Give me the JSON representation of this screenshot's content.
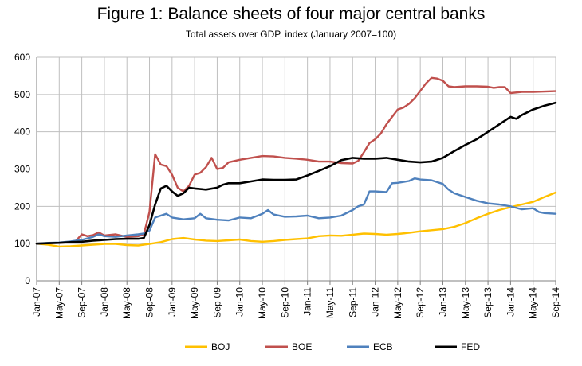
{
  "chart_data": {
    "type": "line",
    "title": "Figure 1: Balance sheets of four major central banks",
    "subtitle": "Total assets over GDP, index (January 2007=100)",
    "xlabel": "",
    "ylabel": "",
    "ylim": [
      0,
      600
    ],
    "yticks": [
      0,
      100,
      200,
      300,
      400,
      500,
      600
    ],
    "grid": true,
    "legend_position": "bottom",
    "x_start": "Jan-07",
    "x_end": "Sep-14",
    "x_tick_labels": [
      "Jan-07",
      "May-07",
      "Sep-07",
      "Jan-08",
      "May-08",
      "Sep-08",
      "Jan-09",
      "May-09",
      "Sep-09",
      "Jan-10",
      "May-10",
      "Sep-10",
      "Jan-11",
      "May-11",
      "Sep-11",
      "Jan-12",
      "May-12",
      "Sep-12",
      "Jan-13",
      "May-13",
      "Sep-13",
      "Jan-14",
      "May-14",
      "Sep-14"
    ],
    "series": [
      {
        "name": "BOJ",
        "color": "#ffc000",
        "points": [
          [
            "Jan-07",
            100
          ],
          [
            "Mar-07",
            97
          ],
          [
            "May-07",
            92
          ],
          [
            "Jul-07",
            93
          ],
          [
            "Sep-07",
            95
          ],
          [
            "Nov-07",
            97
          ],
          [
            "Jan-08",
            99
          ],
          [
            "Mar-08",
            99
          ],
          [
            "May-08",
            96
          ],
          [
            "Jul-08",
            95
          ],
          [
            "Sep-08",
            99
          ],
          [
            "Nov-08",
            104
          ],
          [
            "Jan-09",
            112
          ],
          [
            "Mar-09",
            115
          ],
          [
            "May-09",
            111
          ],
          [
            "Jul-09",
            108
          ],
          [
            "Sep-09",
            107
          ],
          [
            "Nov-09",
            109
          ],
          [
            "Jan-10",
            111
          ],
          [
            "Mar-10",
            107
          ],
          [
            "May-10",
            105
          ],
          [
            "Jul-10",
            107
          ],
          [
            "Sep-10",
            110
          ],
          [
            "Nov-10",
            112
          ],
          [
            "Jan-11",
            114
          ],
          [
            "Mar-11",
            120
          ],
          [
            "May-11",
            122
          ],
          [
            "Jul-11",
            121
          ],
          [
            "Sep-11",
            124
          ],
          [
            "Nov-11",
            127
          ],
          [
            "Jan-12",
            126
          ],
          [
            "Mar-12",
            124
          ],
          [
            "May-12",
            126
          ],
          [
            "Jul-12",
            129
          ],
          [
            "Sep-12",
            133
          ],
          [
            "Nov-12",
            136
          ],
          [
            "Jan-13",
            139
          ],
          [
            "Mar-13",
            145
          ],
          [
            "May-13",
            155
          ],
          [
            "Jul-13",
            168
          ],
          [
            "Sep-13",
            180
          ],
          [
            "Nov-13",
            190
          ],
          [
            "Jan-14",
            198
          ],
          [
            "Mar-14",
            205
          ],
          [
            "May-14",
            212
          ],
          [
            "Jul-14",
            225
          ],
          [
            "Sep-14",
            237
          ]
        ]
      },
      {
        "name": "BOE",
        "color": "#c0504d",
        "points": [
          [
            "Jan-07",
            100
          ],
          [
            "Mar-07",
            101
          ],
          [
            "May-07",
            102
          ],
          [
            "Jul-07",
            104
          ],
          [
            "Aug-07",
            108
          ],
          [
            "Sep-07",
            125
          ],
          [
            "Oct-07",
            120
          ],
          [
            "Nov-07",
            123
          ],
          [
            "Dec-07",
            130
          ],
          [
            "Jan-08",
            122
          ],
          [
            "Mar-08",
            125
          ],
          [
            "May-08",
            118
          ],
          [
            "Jul-08",
            120
          ],
          [
            "Aug-08",
            125
          ],
          [
            "Sep-08",
            185
          ],
          [
            "Oct-08",
            340
          ],
          [
            "Nov-08",
            312
          ],
          [
            "Dec-08",
            308
          ],
          [
            "Jan-09",
            285
          ],
          [
            "Feb-09",
            250
          ],
          [
            "Mar-09",
            240
          ],
          [
            "Apr-09",
            255
          ],
          [
            "May-09",
            285
          ],
          [
            "Jun-09",
            290
          ],
          [
            "Jul-09",
            305
          ],
          [
            "Aug-09",
            330
          ],
          [
            "Sep-09",
            300
          ],
          [
            "Oct-09",
            303
          ],
          [
            "Nov-09",
            318
          ],
          [
            "Jan-10",
            325
          ],
          [
            "Mar-10",
            330
          ],
          [
            "May-10",
            335
          ],
          [
            "Jul-10",
            334
          ],
          [
            "Sep-10",
            330
          ],
          [
            "Nov-10",
            328
          ],
          [
            "Jan-11",
            325
          ],
          [
            "Mar-11",
            320
          ],
          [
            "May-11",
            320
          ],
          [
            "Jul-11",
            316
          ],
          [
            "Sep-11",
            315
          ],
          [
            "Oct-11",
            322
          ],
          [
            "Nov-11",
            345
          ],
          [
            "Dec-11",
            370
          ],
          [
            "Jan-12",
            380
          ],
          [
            "Feb-12",
            395
          ],
          [
            "Mar-12",
            420
          ],
          [
            "Apr-12",
            440
          ],
          [
            "May-12",
            460
          ],
          [
            "Jun-12",
            465
          ],
          [
            "Jul-12",
            475
          ],
          [
            "Aug-12",
            490
          ],
          [
            "Sep-12",
            510
          ],
          [
            "Oct-12",
            530
          ],
          [
            "Nov-12",
            545
          ],
          [
            "Dec-12",
            543
          ],
          [
            "Jan-13",
            537
          ],
          [
            "Feb-13",
            522
          ],
          [
            "Mar-13",
            520
          ],
          [
            "May-13",
            522
          ],
          [
            "Jul-13",
            522
          ],
          [
            "Sep-13",
            521
          ],
          [
            "Oct-13",
            518
          ],
          [
            "Nov-13",
            520
          ],
          [
            "Dec-13",
            520
          ],
          [
            "Jan-14",
            504
          ],
          [
            "Mar-14",
            507
          ],
          [
            "May-14",
            507
          ],
          [
            "Jul-14",
            508
          ],
          [
            "Sep-14",
            509
          ]
        ]
      },
      {
        "name": "ECB",
        "color": "#4f81bd",
        "points": [
          [
            "Jan-07",
            100
          ],
          [
            "Mar-07",
            102
          ],
          [
            "May-07",
            103
          ],
          [
            "Jul-07",
            106
          ],
          [
            "Sep-07",
            110
          ],
          [
            "Nov-07",
            118
          ],
          [
            "Dec-07",
            125
          ],
          [
            "Jan-08",
            120
          ],
          [
            "Mar-08",
            118
          ],
          [
            "May-08",
            122
          ],
          [
            "Jul-08",
            125
          ],
          [
            "Aug-08",
            127
          ],
          [
            "Sep-08",
            135
          ],
          [
            "Oct-08",
            170
          ],
          [
            "Nov-08",
            175
          ],
          [
            "Dec-08",
            180
          ],
          [
            "Jan-09",
            170
          ],
          [
            "Mar-09",
            165
          ],
          [
            "May-09",
            168
          ],
          [
            "Jun-09",
            180
          ],
          [
            "Jul-09",
            168
          ],
          [
            "Sep-09",
            164
          ],
          [
            "Nov-09",
            162
          ],
          [
            "Jan-10",
            170
          ],
          [
            "Mar-10",
            168
          ],
          [
            "May-10",
            180
          ],
          [
            "Jun-10",
            190
          ],
          [
            "Jul-10",
            178
          ],
          [
            "Sep-10",
            172
          ],
          [
            "Nov-10",
            173
          ],
          [
            "Jan-11",
            175
          ],
          [
            "Mar-11",
            168
          ],
          [
            "May-11",
            170
          ],
          [
            "Jul-11",
            175
          ],
          [
            "Sep-11",
            190
          ],
          [
            "Oct-11",
            200
          ],
          [
            "Nov-11",
            205
          ],
          [
            "Dec-11",
            240
          ],
          [
            "Jan-12",
            240
          ],
          [
            "Mar-12",
            238
          ],
          [
            "Apr-12",
            262
          ],
          [
            "May-12",
            263
          ],
          [
            "Jul-12",
            268
          ],
          [
            "Aug-12",
            275
          ],
          [
            "Sep-12",
            272
          ],
          [
            "Nov-12",
            270
          ],
          [
            "Jan-13",
            260
          ],
          [
            "Feb-13",
            245
          ],
          [
            "Mar-13",
            235
          ],
          [
            "May-13",
            225
          ],
          [
            "Jul-13",
            215
          ],
          [
            "Sep-13",
            208
          ],
          [
            "Nov-13",
            205
          ],
          [
            "Jan-14",
            200
          ],
          [
            "Mar-14",
            192
          ],
          [
            "May-14",
            195
          ],
          [
            "Jun-14",
            185
          ],
          [
            "Jul-14",
            182
          ],
          [
            "Sep-14",
            180
          ]
        ]
      },
      {
        "name": "FED",
        "color": "#000000",
        "points": [
          [
            "Jan-07",
            100
          ],
          [
            "Mar-07",
            101
          ],
          [
            "May-07",
            102
          ],
          [
            "Jul-07",
            104
          ],
          [
            "Sep-07",
            105
          ],
          [
            "Nov-07",
            108
          ],
          [
            "Jan-08",
            110
          ],
          [
            "Mar-08",
            112
          ],
          [
            "May-08",
            113
          ],
          [
            "Jul-08",
            113
          ],
          [
            "Aug-08",
            115
          ],
          [
            "Sep-08",
            150
          ],
          [
            "Oct-08",
            205
          ],
          [
            "Nov-08",
            248
          ],
          [
            "Dec-08",
            255
          ],
          [
            "Jan-09",
            240
          ],
          [
            "Feb-09",
            228
          ],
          [
            "Mar-09",
            235
          ],
          [
            "Apr-09",
            250
          ],
          [
            "May-09",
            248
          ],
          [
            "Jul-09",
            245
          ],
          [
            "Sep-09",
            250
          ],
          [
            "Oct-09",
            258
          ],
          [
            "Nov-09",
            262
          ],
          [
            "Jan-10",
            262
          ],
          [
            "Mar-10",
            267
          ],
          [
            "May-10",
            272
          ],
          [
            "Jul-10",
            271
          ],
          [
            "Sep-10",
            271
          ],
          [
            "Nov-10",
            272
          ],
          [
            "Jan-11",
            283
          ],
          [
            "Mar-11",
            295
          ],
          [
            "May-11",
            308
          ],
          [
            "Jul-11",
            324
          ],
          [
            "Sep-11",
            330
          ],
          [
            "Nov-11",
            328
          ],
          [
            "Jan-12",
            328
          ],
          [
            "Mar-12",
            330
          ],
          [
            "May-12",
            325
          ],
          [
            "Jul-12",
            320
          ],
          [
            "Sep-12",
            318
          ],
          [
            "Nov-12",
            320
          ],
          [
            "Jan-13",
            330
          ],
          [
            "Mar-13",
            348
          ],
          [
            "May-13",
            365
          ],
          [
            "Jul-13",
            380
          ],
          [
            "Sep-13",
            400
          ],
          [
            "Nov-13",
            420
          ],
          [
            "Jan-14",
            440
          ],
          [
            "Feb-14",
            435
          ],
          [
            "Mar-14",
            445
          ],
          [
            "May-14",
            460
          ],
          [
            "Jul-14",
            470
          ],
          [
            "Sep-14",
            478
          ]
        ]
      }
    ]
  }
}
